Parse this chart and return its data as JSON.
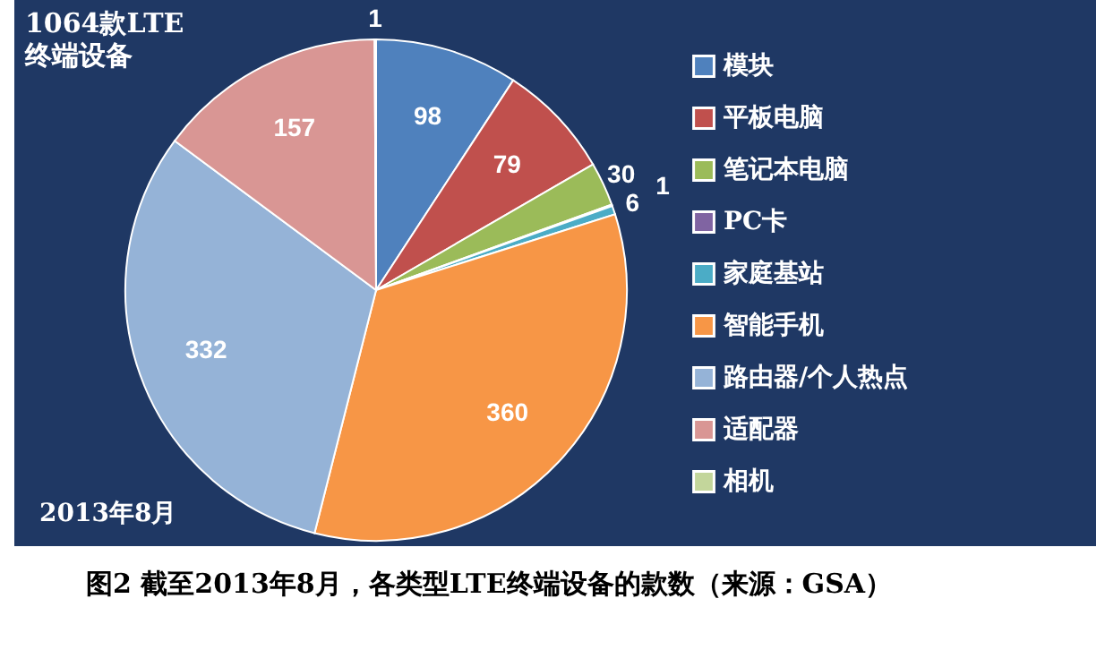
{
  "chart_data": {
    "type": "pie",
    "title": "1064款LTE\n终端设备",
    "categories": [
      "模块",
      "平板电脑",
      "笔记本电脑",
      "PC卡",
      "家庭基站",
      "智能手机",
      "路由器/个人热点",
      "适配器",
      "相机"
    ],
    "values": [
      98,
      79,
      30,
      1,
      6,
      360,
      332,
      157,
      1
    ],
    "colors": [
      "#4f81bd",
      "#c0504d",
      "#9bbb59",
      "#8064a2",
      "#4bacc6",
      "#f79646",
      "#95b3d7",
      "#d99694",
      "#c3d69b"
    ],
    "data_labels": true,
    "legend": "right",
    "annotations": [
      "2013年8月",
      "图2 截至2013年8月，各类型LTE终端设备的款数（来源：GSA）"
    ]
  }
}
